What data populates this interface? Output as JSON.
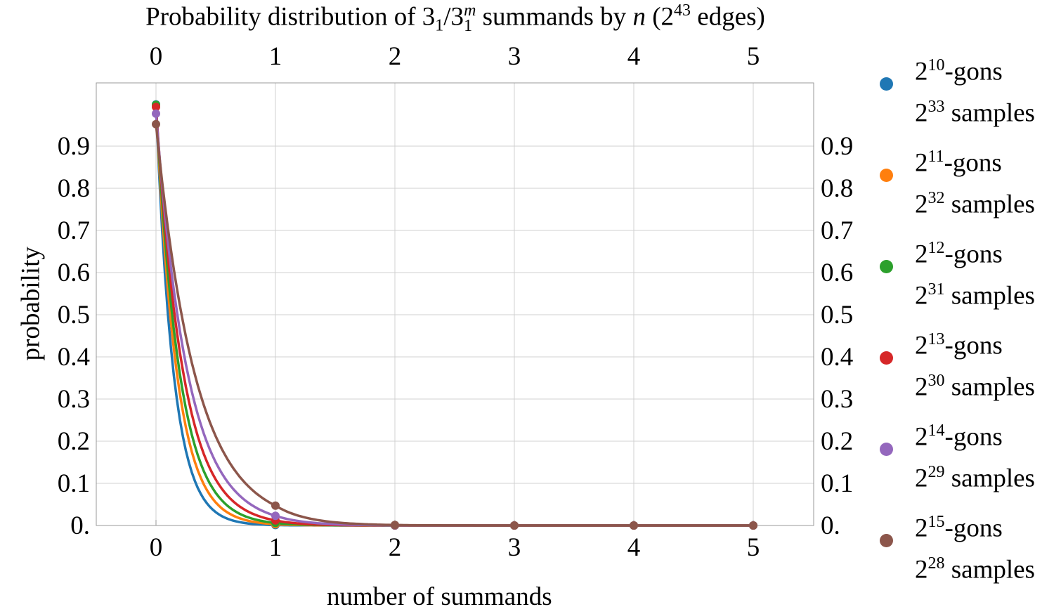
{
  "chart_data": {
    "type": "line",
    "title": {
      "prefix": "Probability distribution of 3",
      "sub1": "1",
      "slash": "/3",
      "sub2": "1",
      "sup2": "m",
      "middle": " summands by ",
      "n": "n",
      "paren": " (2",
      "sup3": "43",
      "suffix": " edges)"
    },
    "xlabel": "number of summands",
    "ylabel": "probability",
    "xlim": [
      -0.5,
      5.5
    ],
    "ylim": [
      0,
      1.05
    ],
    "x_ticks": [
      "0",
      "1",
      "2",
      "3",
      "4",
      "5"
    ],
    "y_ticks": [
      "0.",
      "0.1",
      "0.2",
      "0.3",
      "0.4",
      "0.5",
      "0.6",
      "0.7",
      "0.8",
      "0.9"
    ],
    "grid": true,
    "legend_position": "right",
    "x": [
      0,
      1,
      2,
      3,
      4,
      5
    ],
    "series": [
      {
        "gons_exp": "10",
        "samples_exp": "33",
        "gons_label": "-gons",
        "samples_label": " samples",
        "color": "#1f77b4",
        "values": [
          0.999,
          0.001,
          1e-05,
          0,
          0,
          0
        ]
      },
      {
        "gons_exp": "11",
        "samples_exp": "32",
        "gons_label": "-gons",
        "samples_label": " samples",
        "color": "#ff7f0e",
        "values": [
          0.997,
          0.003,
          2e-05,
          0,
          0,
          0
        ]
      },
      {
        "gons_exp": "12",
        "samples_exp": "31",
        "gons_label": "-gons",
        "samples_label": " samples",
        "color": "#2ca02c",
        "values": [
          0.998,
          0.006,
          5e-05,
          0,
          0,
          0
        ]
      },
      {
        "gons_exp": "13",
        "samples_exp": "30",
        "gons_label": "-gons",
        "samples_label": " samples",
        "color": "#d62728",
        "values": [
          0.993,
          0.012,
          0.0001,
          0,
          0,
          0
        ]
      },
      {
        "gons_exp": "14",
        "samples_exp": "29",
        "gons_label": "-gons",
        "samples_label": " samples",
        "color": "#9467bd",
        "values": [
          0.977,
          0.023,
          0.0004,
          0,
          0,
          0
        ]
      },
      {
        "gons_exp": "15",
        "samples_exp": "28",
        "gons_label": "-gons",
        "samples_label": " samples",
        "color": "#8c564b",
        "values": [
          0.952,
          0.047,
          0.0012,
          2e-05,
          0,
          0
        ]
      }
    ]
  }
}
